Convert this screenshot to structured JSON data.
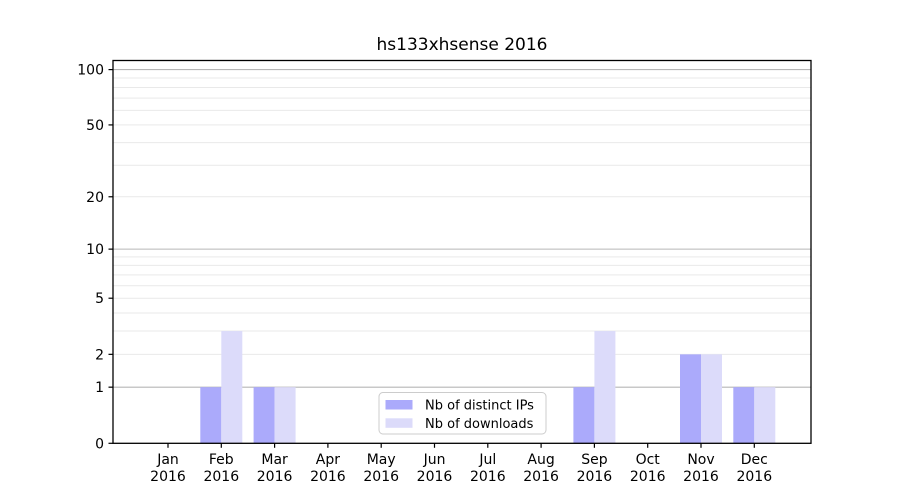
{
  "chart_data": {
    "type": "bar",
    "title": "hs133xhsense 2016",
    "categories": [
      "Jan",
      "Feb",
      "Mar",
      "Apr",
      "May",
      "Jun",
      "Jul",
      "Aug",
      "Sep",
      "Oct",
      "Nov",
      "Dec"
    ],
    "x_year": "2016",
    "series": [
      {
        "name": "Nb of distinct IPs",
        "color": "#abaafb",
        "values": [
          0,
          1,
          1,
          0,
          0,
          0,
          0,
          0,
          1,
          0,
          2,
          1
        ]
      },
      {
        "name": "Nb of downloads",
        "color": "#dcdbfa",
        "values": [
          0,
          3,
          1,
          0,
          0,
          0,
          0,
          0,
          3,
          0,
          2,
          1
        ]
      }
    ],
    "yscale": "log10(1+y)",
    "ylim": [
      0,
      112
    ],
    "yticks": [
      0,
      1,
      2,
      5,
      10,
      20,
      50,
      100
    ],
    "major_grid_values": [
      1,
      10,
      100
    ],
    "minor_grid_values": [
      2,
      3,
      4,
      5,
      6,
      7,
      8,
      9,
      20,
      30,
      40,
      50,
      60,
      70,
      80,
      90
    ],
    "grid": "on",
    "legend_position": "lower center inside plot",
    "xlabel": "",
    "ylabel": ""
  },
  "legend": {
    "items": [
      {
        "label": "Nb of distinct IPs",
        "color": "#abaafb"
      },
      {
        "label": "Nb of downloads",
        "color": "#dcdbfa"
      }
    ]
  },
  "colors": {
    "background": "#ffffff",
    "spine": "#000000",
    "major_grid": "#b6b6b6",
    "minor_grid": "#e9e9e9",
    "legend_border": "#cccccc",
    "tick_text": "#000000"
  }
}
